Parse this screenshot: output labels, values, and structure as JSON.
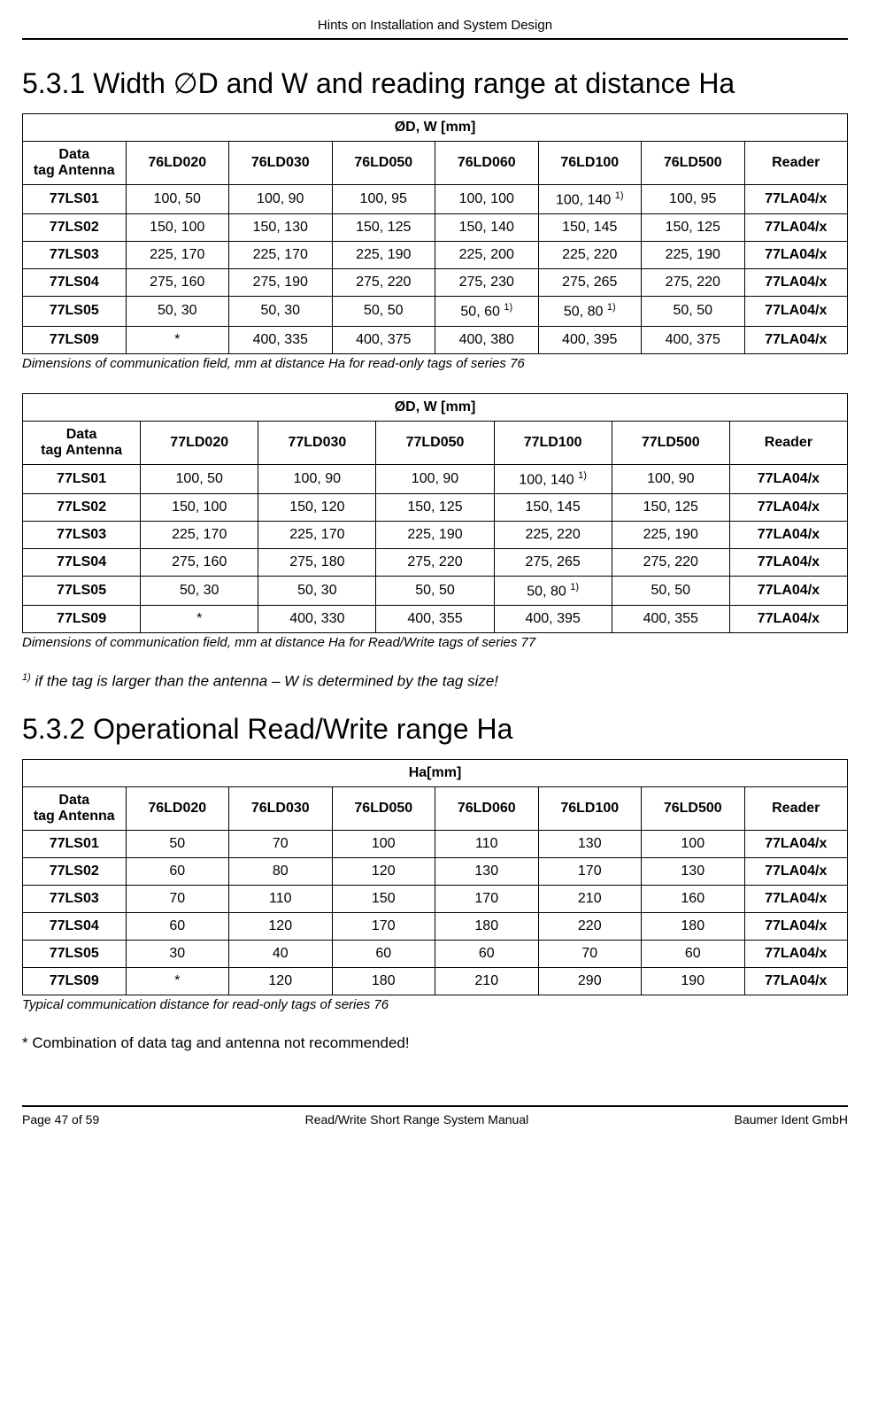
{
  "header": "Hints on Installation and System Design",
  "section1": {
    "title": "5.3.1 Width ∅D and W and reading range at distance Ha"
  },
  "table1": {
    "title": "ØD, W [mm]",
    "columns": [
      "Data tag Antenna",
      "76LD020",
      "76LD030",
      "76LD050",
      "76LD060",
      "76LD100",
      "76LD500",
      "Reader"
    ],
    "rows": [
      {
        "tag": "77LS01",
        "c": [
          "100, 50",
          "100, 90",
          "100, 95",
          "100, 100",
          {
            "v": "100, 140",
            "sup": "1)"
          },
          "100, 95"
        ],
        "reader": "77LA04/x"
      },
      {
        "tag": "77LS02",
        "c": [
          "150, 100",
          "150, 130",
          "150, 125",
          "150, 140",
          "150, 145",
          "150, 125"
        ],
        "reader": "77LA04/x"
      },
      {
        "tag": "77LS03",
        "c": [
          "225, 170",
          "225, 170",
          "225, 190",
          "225, 200",
          "225, 220",
          "225, 190"
        ],
        "reader": "77LA04/x"
      },
      {
        "tag": "77LS04",
        "c": [
          "275, 160",
          "275, 190",
          "275, 220",
          "275, 230",
          "275, 265",
          "275, 220"
        ],
        "reader": "77LA04/x"
      },
      {
        "tag": "77LS05",
        "c": [
          "50, 30",
          "50, 30",
          "50, 50",
          {
            "v": "50, 60",
            "sup": "1)"
          },
          {
            "v": "50, 80",
            "sup": "1)"
          },
          "50, 50"
        ],
        "reader": "77LA04/x"
      },
      {
        "tag": "77LS09",
        "c": [
          "*",
          "400, 335",
          "400, 375",
          "400, 380",
          "400, 395",
          "400, 375"
        ],
        "reader": "77LA04/x"
      }
    ],
    "caption": "Dimensions of communication field, mm at distance Ha for read-only tags of series 76"
  },
  "table2": {
    "title": "ØD, W [mm]",
    "columns": [
      "Data tag Antenna",
      "77LD020",
      "77LD030",
      "77LD050",
      "77LD100",
      "77LD500",
      "Reader"
    ],
    "rows": [
      {
        "tag": "77LS01",
        "c": [
          "100, 50",
          "100, 90",
          "100, 90",
          {
            "v": "100, 140",
            "sup": "1)"
          },
          "100, 90"
        ],
        "reader": "77LA04/x"
      },
      {
        "tag": "77LS02",
        "c": [
          "150, 100",
          "150, 120",
          "150, 125",
          "150, 145",
          "150, 125"
        ],
        "reader": "77LA04/x"
      },
      {
        "tag": "77LS03",
        "c": [
          "225, 170",
          "225, 170",
          "225, 190",
          "225, 220",
          "225, 190"
        ],
        "reader": "77LA04/x"
      },
      {
        "tag": "77LS04",
        "c": [
          "275, 160",
          "275, 180",
          "275, 220",
          "275, 265",
          "275, 220"
        ],
        "reader": "77LA04/x"
      },
      {
        "tag": "77LS05",
        "c": [
          "50, 30",
          "50, 30",
          "50, 50",
          {
            "v": "50, 80",
            "sup": "1)"
          },
          "50, 50"
        ],
        "reader": "77LA04/x"
      },
      {
        "tag": "77LS09",
        "c": [
          "*",
          "400, 330",
          "400, 355",
          "400, 395",
          "400, 355"
        ],
        "reader": "77LA04/x"
      }
    ],
    "caption": "Dimensions of communication field, mm at distance Ha for Read/Write tags of series 77",
    "footnote_sup": "1)",
    "footnote": " if the tag is larger than the antenna – W is determined by the tag size!"
  },
  "section2": {
    "title": "5.3.2 Operational Read/Write range Ha"
  },
  "table3": {
    "title": "Ha[mm]",
    "columns": [
      "Data tag Antenna",
      "76LD020",
      "76LD030",
      "76LD050",
      "76LD060",
      "76LD100",
      "76LD500",
      "Reader"
    ],
    "rows": [
      {
        "tag": "77LS01",
        "c": [
          "50",
          "70",
          "100",
          "110",
          "130",
          "100"
        ],
        "reader": "77LA04/x"
      },
      {
        "tag": "77LS02",
        "c": [
          "60",
          "80",
          "120",
          "130",
          "170",
          "130"
        ],
        "reader": "77LA04/x"
      },
      {
        "tag": "77LS03",
        "c": [
          "70",
          "110",
          "150",
          "170",
          "210",
          "160"
        ],
        "reader": "77LA04/x"
      },
      {
        "tag": "77LS04",
        "c": [
          "60",
          "120",
          "170",
          "180",
          "220",
          "180"
        ],
        "reader": "77LA04/x"
      },
      {
        "tag": "77LS05",
        "c": [
          "30",
          "40",
          "60",
          "60",
          "70",
          "60"
        ],
        "reader": "77LA04/x"
      },
      {
        "tag": "77LS09",
        "c": [
          "*",
          "120",
          "180",
          "210",
          "290",
          "190"
        ],
        "reader": "77LA04/x"
      }
    ],
    "caption": "Typical communication distance for read-only tags of series 76"
  },
  "note": "* Combination of data tag and antenna not recommended!",
  "footer": {
    "left": "Page 47 of 59",
    "center": "Read/Write Short Range System Manual",
    "right": "Baumer Ident GmbH"
  }
}
